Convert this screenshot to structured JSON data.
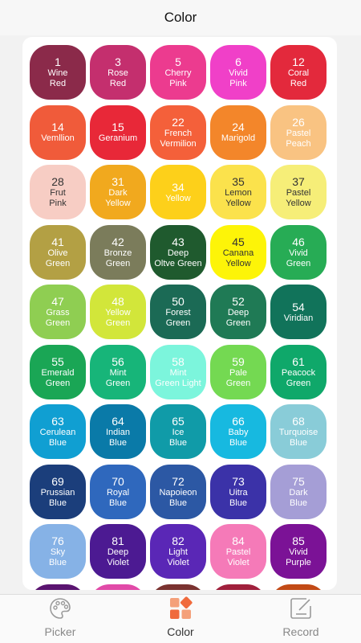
{
  "header": {
    "title": "Color"
  },
  "swatches": [
    {
      "num": "1",
      "name": "Wine\nRed",
      "bg": "#8b2a4a",
      "fg": "#ffffff"
    },
    {
      "num": "3",
      "name": "Rose\nRed",
      "bg": "#c42f6e",
      "fg": "#ffffff"
    },
    {
      "num": "5",
      "name": "Cherry\nPink",
      "bg": "#ec3b8f",
      "fg": "#ffffff"
    },
    {
      "num": "6",
      "name": "Vivid\nPink",
      "bg": "#f040c8",
      "fg": "#ffffff"
    },
    {
      "num": "12",
      "name": "Coral\nRed",
      "bg": "#e3293c",
      "fg": "#ffffff"
    },
    {
      "num": "14",
      "name": "Vemllion",
      "bg": "#f05b3a",
      "fg": "#ffffff"
    },
    {
      "num": "15",
      "name": "Geranium",
      "bg": "#e82838",
      "fg": "#ffffff"
    },
    {
      "num": "22",
      "name": "French\nVermilion",
      "bg": "#f4603a",
      "fg": "#ffffff"
    },
    {
      "num": "24",
      "name": "Marigold",
      "bg": "#f3862a",
      "fg": "#ffffff"
    },
    {
      "num": "26",
      "name": "Pastel\nPeach",
      "bg": "#f9c382",
      "fg": "#ffffff"
    },
    {
      "num": "28",
      "name": "Frut\nPink",
      "bg": "#f7cdc4",
      "fg": "#333333"
    },
    {
      "num": "31",
      "name": "Dark\nYellow",
      "bg": "#f1a91e",
      "fg": "#ffffff"
    },
    {
      "num": "34",
      "name": "Yellow",
      "bg": "#fdd01a",
      "fg": "#ffffff"
    },
    {
      "num": "35",
      "name": "Lemon\nYellow",
      "bg": "#fbe24c",
      "fg": "#333333"
    },
    {
      "num": "37",
      "name": "Pastel\nYellow",
      "bg": "#f6ee78",
      "fg": "#333333"
    },
    {
      "num": "41",
      "name": "Olive\nGreen",
      "bg": "#b3a044",
      "fg": "#ffffff"
    },
    {
      "num": "42",
      "name": "Bronze\nGreen",
      "bg": "#7b7c5b",
      "fg": "#ffffff"
    },
    {
      "num": "43",
      "name": "Deep\nOltve Green",
      "bg": "#1f5a2e",
      "fg": "#ffffff"
    },
    {
      "num": "45",
      "name": "Canana\nYellow",
      "bg": "#fdf408",
      "fg": "#333333"
    },
    {
      "num": "46",
      "name": "Vivid\nGreen",
      "bg": "#27ac55",
      "fg": "#ffffff"
    },
    {
      "num": "47",
      "name": "Grass\nGreen",
      "bg": "#8fce52",
      "fg": "#ffffff"
    },
    {
      "num": "48",
      "name": "Yellow\nGreen",
      "bg": "#d2e63a",
      "fg": "#ffffff"
    },
    {
      "num": "50",
      "name": "Forest\nGreen",
      "bg": "#1b6a55",
      "fg": "#ffffff"
    },
    {
      "num": "52",
      "name": "Deep\nGreen",
      "bg": "#1f7a55",
      "fg": "#ffffff"
    },
    {
      "num": "54",
      "name": "Viridian",
      "bg": "#11735a",
      "fg": "#ffffff"
    },
    {
      "num": "55",
      "name": "Emerald\nGreen",
      "bg": "#1aa655",
      "fg": "#ffffff"
    },
    {
      "num": "56",
      "name": "Mint\nGreen",
      "bg": "#17b579",
      "fg": "#ffffff"
    },
    {
      "num": "58",
      "name": "Mint\nGreen Light",
      "bg": "#7cf5dc",
      "fg": "#ffffff"
    },
    {
      "num": "59",
      "name": "Pale\nGreen",
      "bg": "#74d952",
      "fg": "#ffffff"
    },
    {
      "num": "61",
      "name": "Peacock\nGreen",
      "bg": "#0fa86a",
      "fg": "#ffffff"
    },
    {
      "num": "63",
      "name": "Cerulean\nBlue",
      "bg": "#109fd2",
      "fg": "#ffffff"
    },
    {
      "num": "64",
      "name": "Indian\nBlue",
      "bg": "#0a7aa8",
      "fg": "#ffffff"
    },
    {
      "num": "65",
      "name": "Ice\nBlue",
      "bg": "#109ba8",
      "fg": "#ffffff"
    },
    {
      "num": "66",
      "name": "Baby\nBlue",
      "bg": "#17b9e0",
      "fg": "#ffffff"
    },
    {
      "num": "68",
      "name": "Turquoise\nBlue",
      "bg": "#89ccd8",
      "fg": "#ffffff"
    },
    {
      "num": "69",
      "name": "Prussian\nBlue",
      "bg": "#1b3e7b",
      "fg": "#ffffff"
    },
    {
      "num": "70",
      "name": "Royal\nBlue",
      "bg": "#2f68bd",
      "fg": "#ffffff"
    },
    {
      "num": "72",
      "name": "Napoieon\nBlue",
      "bg": "#2c58a4",
      "fg": "#ffffff"
    },
    {
      "num": "73",
      "name": "Uitra\nBlue",
      "bg": "#3b32a8",
      "fg": "#ffffff"
    },
    {
      "num": "75",
      "name": "Dark\nBlue",
      "bg": "#a59ed6",
      "fg": "#ffffff"
    },
    {
      "num": "76",
      "name": "Sky\nBlue",
      "bg": "#86b2e6",
      "fg": "#ffffff"
    },
    {
      "num": "81",
      "name": "Deep\nViolet",
      "bg": "#4c1a92",
      "fg": "#ffffff"
    },
    {
      "num": "82",
      "name": "Light\nViolet",
      "bg": "#5a27b6",
      "fg": "#ffffff"
    },
    {
      "num": "84",
      "name": "Pastel\nViolet",
      "bg": "#f57ab8",
      "fg": "#ffffff"
    },
    {
      "num": "85",
      "name": "Vivid\nPurple",
      "bg": "#7b1296",
      "fg": "#ffffff"
    },
    {
      "num": "",
      "name": "",
      "bg": "#5a1470",
      "fg": "#ffffff"
    },
    {
      "num": "",
      "name": "",
      "bg": "#e14aa8",
      "fg": "#ffffff"
    },
    {
      "num": "",
      "name": "",
      "bg": "#7a3230",
      "fg": "#ffffff"
    },
    {
      "num": "",
      "name": "",
      "bg": "#a0203c",
      "fg": "#ffffff"
    },
    {
      "num": "",
      "name": "",
      "bg": "#c24a16",
      "fg": "#ffffff"
    }
  ],
  "tabs": [
    {
      "label": "Picker",
      "icon": "palette-icon",
      "active": false
    },
    {
      "label": "Color",
      "icon": "color-grid-icon",
      "active": true
    },
    {
      "label": "Record",
      "icon": "edit-record-icon",
      "active": false
    }
  ]
}
